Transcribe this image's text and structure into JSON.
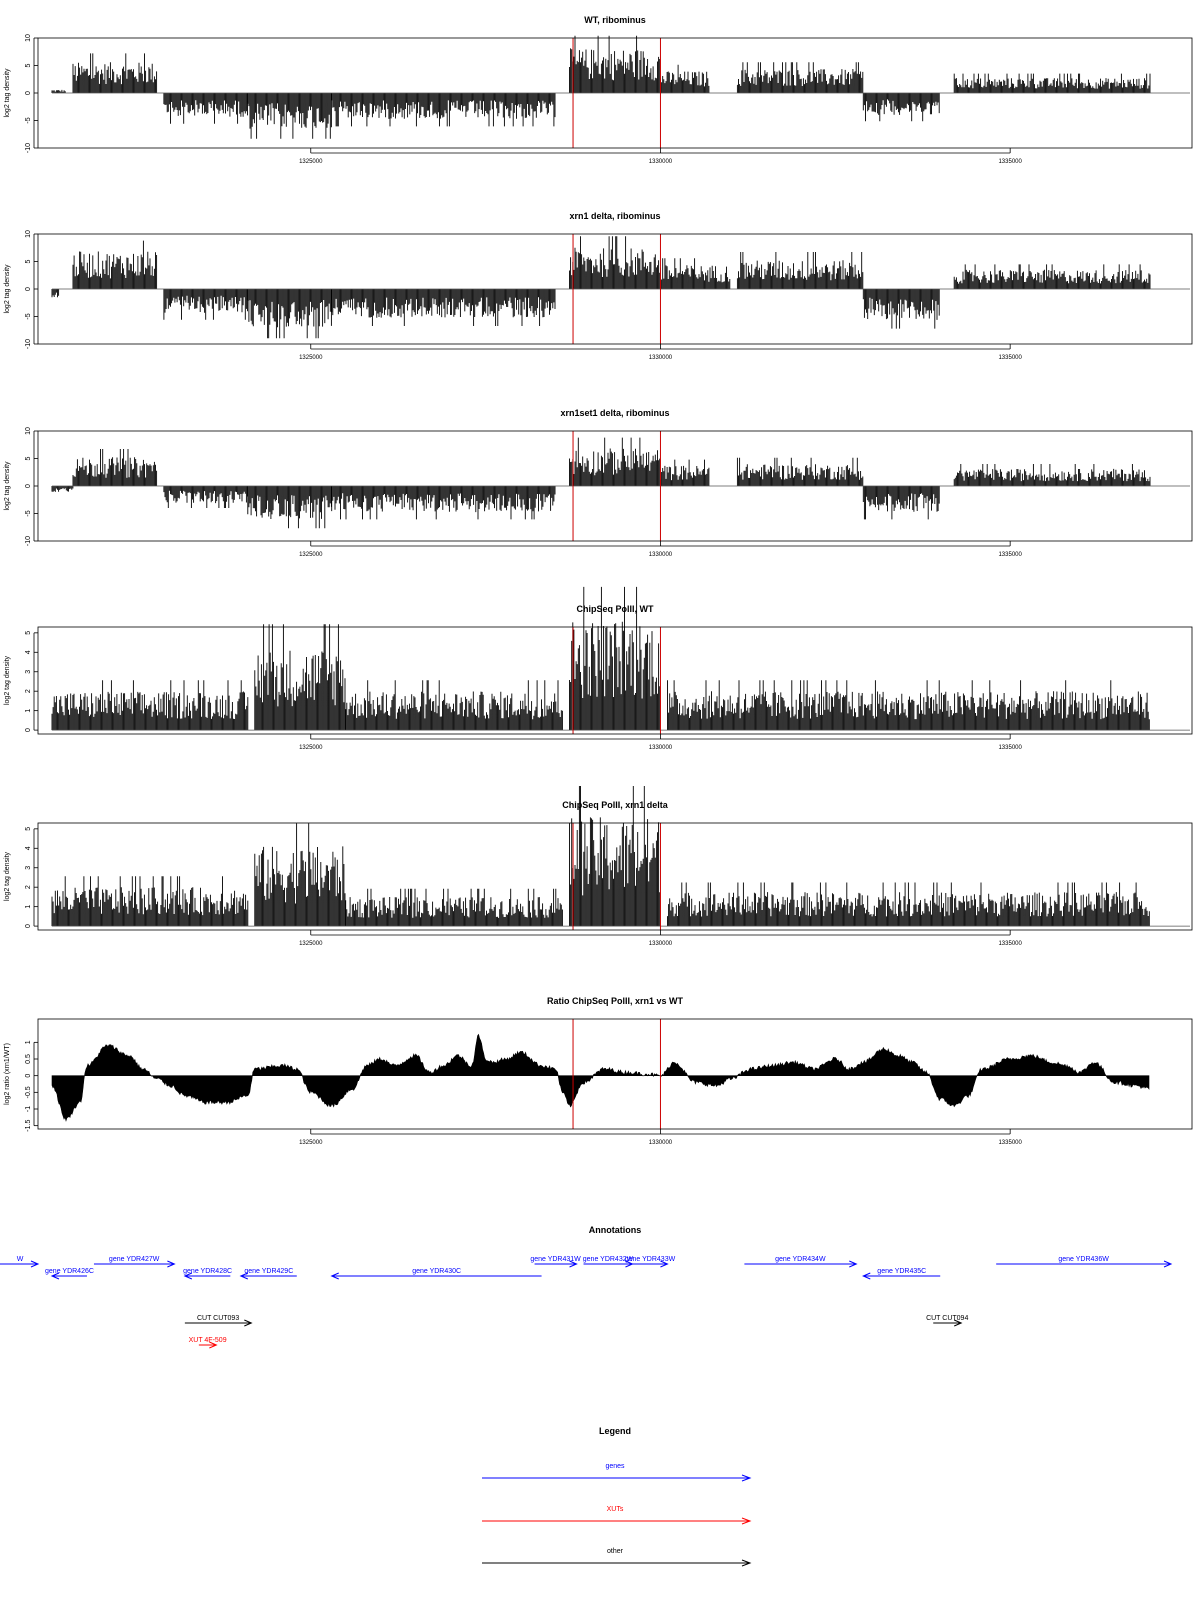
{
  "chart_data": [
    {
      "type": "bar",
      "title": "WT, ribominus",
      "ylabel": "log2 tag density",
      "ylim": [
        -10,
        10
      ],
      "yticks": [
        -10,
        -5,
        0,
        5,
        10
      ],
      "xlim": [
        1321100,
        1337600
      ],
      "xticks": [
        1325000,
        1330000,
        1335000
      ],
      "markers": [
        1328750,
        1330000
      ],
      "segments": [
        {
          "start": 1321300,
          "end": 1321500,
          "level": 0.5
        },
        {
          "start": 1321600,
          "end": 1322800,
          "level": 4.5
        },
        {
          "start": 1322900,
          "end": 1324100,
          "level": -3.5
        },
        {
          "start": 1324100,
          "end": 1325300,
          "level": -5.2
        },
        {
          "start": 1325300,
          "end": 1328500,
          "level": -3.8
        },
        {
          "start": 1328700,
          "end": 1330000,
          "level": 6.5
        },
        {
          "start": 1330000,
          "end": 1330700,
          "level": 3.2
        },
        {
          "start": 1331100,
          "end": 1332900,
          "level": 3.5
        },
        {
          "start": 1332900,
          "end": 1334000,
          "level": -3.2
        },
        {
          "start": 1334200,
          "end": 1337000,
          "level": 2.2
        }
      ]
    },
    {
      "type": "bar",
      "title": "xrn1 delta, ribominus",
      "ylabel": "log2 tag density",
      "ylim": [
        -10,
        10
      ],
      "yticks": [
        -10,
        -5,
        0,
        5,
        10
      ],
      "xlim": [
        1321100,
        1337600
      ],
      "xticks": [
        1325000,
        1330000,
        1335000
      ],
      "markers": [
        1328750,
        1330000
      ],
      "segments": [
        {
          "start": 1321300,
          "end": 1321400,
          "level": -1.5
        },
        {
          "start": 1321600,
          "end": 1322800,
          "level": 5.5
        },
        {
          "start": 1322900,
          "end": 1324100,
          "level": -3.5
        },
        {
          "start": 1324100,
          "end": 1325300,
          "level": -5.6
        },
        {
          "start": 1325300,
          "end": 1328500,
          "level": -4.2
        },
        {
          "start": 1328700,
          "end": 1330000,
          "level": 6.0
        },
        {
          "start": 1330000,
          "end": 1331000,
          "level": 3.5
        },
        {
          "start": 1331100,
          "end": 1332900,
          "level": 4.2
        },
        {
          "start": 1332900,
          "end": 1334000,
          "level": -4.5
        },
        {
          "start": 1334200,
          "end": 1337000,
          "level": 2.8
        }
      ]
    },
    {
      "type": "bar",
      "title": "xrn1set1 delta, ribominus",
      "ylabel": "log2 tag density",
      "ylim": [
        -10,
        10
      ],
      "yticks": [
        -10,
        -5,
        0,
        5,
        10
      ],
      "xlim": [
        1321100,
        1337600
      ],
      "xticks": [
        1325000,
        1330000,
        1335000
      ],
      "markers": [
        1328750,
        1330000
      ],
      "segments": [
        {
          "start": 1321300,
          "end": 1321600,
          "level": -1.0
        },
        {
          "start": 1321600,
          "end": 1322800,
          "level": 4.2
        },
        {
          "start": 1322900,
          "end": 1324100,
          "level": -2.5
        },
        {
          "start": 1324100,
          "end": 1325300,
          "level": -4.8
        },
        {
          "start": 1325300,
          "end": 1328500,
          "level": -3.8
        },
        {
          "start": 1328700,
          "end": 1330000,
          "level": 5.5
        },
        {
          "start": 1330000,
          "end": 1330700,
          "level": 3.0
        },
        {
          "start": 1331100,
          "end": 1332900,
          "level": 3.2
        },
        {
          "start": 1332900,
          "end": 1334000,
          "level": -3.8
        },
        {
          "start": 1334200,
          "end": 1337000,
          "level": 2.5
        }
      ]
    },
    {
      "type": "bar",
      "title": "ChipSeq PolII, WT",
      "ylabel": "log2 tag density",
      "ylim": [
        -0.2,
        5.3
      ],
      "yticks": [
        0,
        1,
        2,
        3,
        4,
        5
      ],
      "xlim": [
        1321100,
        1337600
      ],
      "xticks": [
        1325000,
        1330000,
        1335000
      ],
      "markers": [
        1328750,
        1330000
      ],
      "segments": [
        {
          "start": 1321300,
          "end": 1324100,
          "level": 1.6
        },
        {
          "start": 1324200,
          "end": 1325500,
          "level": 3.4
        },
        {
          "start": 1325500,
          "end": 1328600,
          "level": 1.6
        },
        {
          "start": 1328700,
          "end": 1330000,
          "level": 4.6
        },
        {
          "start": 1330100,
          "end": 1337000,
          "level": 1.6
        }
      ]
    },
    {
      "type": "bar",
      "title": "ChipSeq PolII, xrn1 delta",
      "ylabel": "log2 tag density",
      "ylim": [
        -0.2,
        5.3
      ],
      "yticks": [
        0,
        1,
        2,
        3,
        4,
        5
      ],
      "xlim": [
        1321100,
        1337600
      ],
      "xticks": [
        1325000,
        1330000,
        1335000
      ],
      "markers": [
        1328750,
        1330000
      ],
      "segments": [
        {
          "start": 1321300,
          "end": 1324100,
          "level": 1.6
        },
        {
          "start": 1324200,
          "end": 1325500,
          "level": 3.3
        },
        {
          "start": 1325500,
          "end": 1328600,
          "level": 1.2
        },
        {
          "start": 1328700,
          "end": 1330000,
          "level": 4.5
        },
        {
          "start": 1330100,
          "end": 1337000,
          "level": 1.4
        }
      ]
    },
    {
      "type": "area",
      "title": "Ratio ChipSeq PolII, xrn1 vs WT",
      "ylabel": "log2 ratio (xrn1/WT)",
      "ylim": [
        -1.6,
        1.7
      ],
      "yticks": [
        -1.5,
        -1.0,
        -0.5,
        0.0,
        0.5,
        1.0
      ],
      "xlim": [
        1321100,
        1337600
      ],
      "xticks": [
        1325000,
        1330000,
        1335000
      ],
      "markers": [
        1328750,
        1330000
      ],
      "x": [
        1321300,
        1321500,
        1321700,
        1321800,
        1322100,
        1322400,
        1322600,
        1322800,
        1323000,
        1323200,
        1323500,
        1323800,
        1324100,
        1324200,
        1324600,
        1324800,
        1325000,
        1325300,
        1325600,
        1325800,
        1326000,
        1326200,
        1326500,
        1326700,
        1326900,
        1327100,
        1327300,
        1327400,
        1327500,
        1327600,
        1327800,
        1328000,
        1328300,
        1328500,
        1328600,
        1328700,
        1328900,
        1329200,
        1329500,
        1329800,
        1330000,
        1330200,
        1330500,
        1330800,
        1331000,
        1331300,
        1331600,
        1331900,
        1332200,
        1332500,
        1332700,
        1332900,
        1333200,
        1333400,
        1333600,
        1333800,
        1334000,
        1334200,
        1334400,
        1334600,
        1335000,
        1335300,
        1335600,
        1335800,
        1336000,
        1336200,
        1336500,
        1336800,
        1337000
      ],
      "y": [
        -0.3,
        -1.3,
        -0.8,
        0.3,
        0.9,
        0.6,
        0.2,
        -0.1,
        -0.3,
        -0.6,
        -0.8,
        -0.8,
        -0.6,
        0.2,
        0.3,
        0.2,
        -0.5,
        -0.9,
        -0.4,
        0.3,
        0.5,
        0.3,
        0.6,
        0.1,
        0.3,
        0.6,
        0.3,
        1.2,
        0.5,
        0.4,
        0.5,
        0.7,
        0.3,
        0.2,
        -0.5,
        -0.9,
        -0.2,
        0.2,
        0.1,
        0.05,
        0.0,
        0.4,
        -0.2,
        -0.3,
        -0.1,
        0.2,
        0.3,
        0.4,
        0.2,
        0.5,
        0.2,
        0.4,
        0.8,
        0.6,
        0.4,
        0.1,
        -0.7,
        -0.9,
        -0.6,
        0.2,
        0.5,
        0.6,
        0.4,
        0.3,
        0.1,
        0.4,
        -0.2,
        -0.3,
        -0.4
      ]
    }
  ],
  "annotations": {
    "title": "Annotations",
    "xlim": [
      1321100,
      1337600
    ],
    "items": [
      {
        "label": "W",
        "start": 1320400,
        "end": 1321100,
        "dir": "right",
        "row": 0,
        "kind": "gene"
      },
      {
        "label": "gene YDR426C",
        "start": 1321300,
        "end": 1321800,
        "dir": "left",
        "row": 1,
        "kind": "gene"
      },
      {
        "label": "gene YDR427W",
        "start": 1321900,
        "end": 1323050,
        "dir": "right",
        "row": 0,
        "kind": "gene"
      },
      {
        "label": "gene YDR428C",
        "start": 1323200,
        "end": 1323850,
        "dir": "left",
        "row": 1,
        "kind": "gene"
      },
      {
        "label": "gene YDR429C",
        "start": 1324000,
        "end": 1324800,
        "dir": "left",
        "row": 1,
        "kind": "gene"
      },
      {
        "label": "gene YDR430C",
        "start": 1325300,
        "end": 1328300,
        "dir": "left",
        "row": 1,
        "kind": "gene"
      },
      {
        "label": "gene YDR431W",
        "start": 1328200,
        "end": 1328800,
        "dir": "right",
        "row": 0,
        "kind": "gene"
      },
      {
        "label": "gene YDR432W",
        "start": 1328900,
        "end": 1329600,
        "dir": "right",
        "row": 0,
        "kind": "gene"
      },
      {
        "label": "gene YDR433W",
        "start": 1329600,
        "end": 1330100,
        "dir": "right",
        "row": 0,
        "kind": "gene"
      },
      {
        "label": "gene YDR434W",
        "start": 1331200,
        "end": 1332800,
        "dir": "right",
        "row": 0,
        "kind": "gene"
      },
      {
        "label": "gene YDR435C",
        "start": 1332900,
        "end": 1334000,
        "dir": "left",
        "row": 1,
        "kind": "gene"
      },
      {
        "label": "gene YDR436W",
        "start": 1334800,
        "end": 1337300,
        "dir": "right",
        "row": 0,
        "kind": "gene"
      },
      {
        "label": "CUT CUT093",
        "start": 1323200,
        "end": 1324150,
        "dir": "right",
        "row": 3,
        "kind": "other"
      },
      {
        "label": "CUT CUT094",
        "start": 1333900,
        "end": 1334300,
        "dir": "right",
        "row": 3,
        "kind": "other"
      },
      {
        "label": "XUT 4F-509",
        "start": 1323400,
        "end": 1323650,
        "dir": "right",
        "row": 4,
        "kind": "xut"
      }
    ]
  },
  "legend": {
    "title": "Legend",
    "items": [
      {
        "label": "genes",
        "color": "#0000ff"
      },
      {
        "label": "XUTs",
        "color": "#ff0000"
      },
      {
        "label": "other",
        "color": "#000000"
      }
    ]
  },
  "colors": {
    "gene": "#0000ff",
    "xut": "#ff0000",
    "other": "#000000",
    "marker": "#cc0000",
    "bars": "#000000"
  }
}
